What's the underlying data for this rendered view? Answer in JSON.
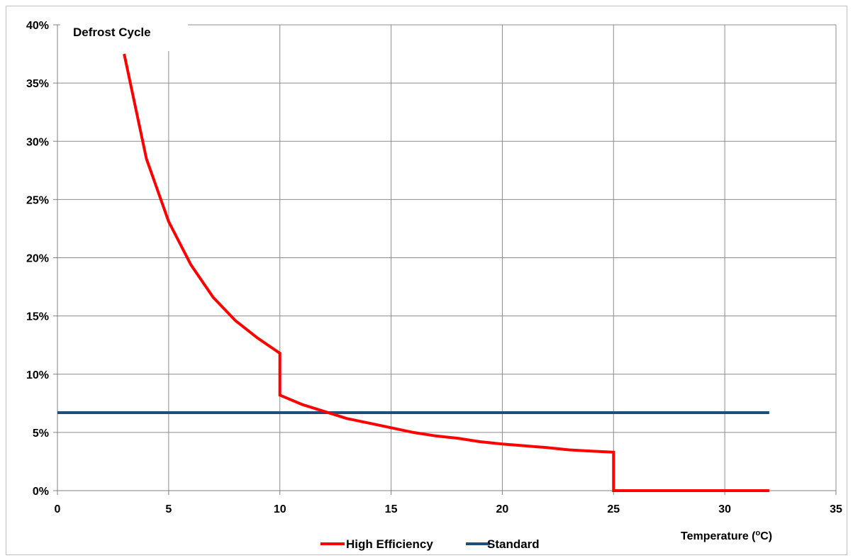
{
  "chart_data": {
    "type": "line",
    "title": "Defrost Cycle",
    "xlabel": "Temperature (",
    "xlabel_sup": "o",
    "xlabel_tail": "C)",
    "ylabel": "",
    "xlim": [
      0,
      35
    ],
    "ylim": [
      0,
      40
    ],
    "x_ticks": [
      0,
      5,
      10,
      15,
      20,
      25,
      30,
      35
    ],
    "y_ticks": [
      0,
      5,
      10,
      15,
      20,
      25,
      30,
      35,
      40
    ],
    "y_tick_labels": [
      "0%",
      "5%",
      "10%",
      "15%",
      "20%",
      "25%",
      "30%",
      "35%",
      "40%"
    ],
    "x_tick_labels": [
      "0",
      "5",
      "10",
      "15",
      "20",
      "25",
      "30",
      "35"
    ],
    "grid": true,
    "legend_position": "bottom",
    "series": [
      {
        "name": "High Efficiency",
        "color": "#ff0000",
        "points": [
          [
            3,
            37.5
          ],
          [
            4,
            28.5
          ],
          [
            5,
            23.1
          ],
          [
            6,
            19.4
          ],
          [
            7,
            16.6
          ],
          [
            8,
            14.6
          ],
          [
            9,
            13.1
          ],
          [
            10,
            11.8
          ],
          [
            10,
            8.2
          ],
          [
            11,
            7.4
          ],
          [
            12,
            6.8
          ],
          [
            13,
            6.2
          ],
          [
            14,
            5.8
          ],
          [
            15,
            5.4
          ],
          [
            16,
            5.0
          ],
          [
            17,
            4.7
          ],
          [
            18,
            4.5
          ],
          [
            19,
            4.2
          ],
          [
            20,
            4.0
          ],
          [
            21,
            3.85
          ],
          [
            22,
            3.7
          ],
          [
            23,
            3.5
          ],
          [
            24,
            3.4
          ],
          [
            25,
            3.3
          ],
          [
            25,
            0
          ],
          [
            26,
            0
          ],
          [
            32,
            0
          ]
        ]
      },
      {
        "name": "Standard",
        "color": "#1f4e79",
        "points": [
          [
            0,
            6.7
          ],
          [
            32,
            6.7
          ]
        ]
      }
    ]
  }
}
